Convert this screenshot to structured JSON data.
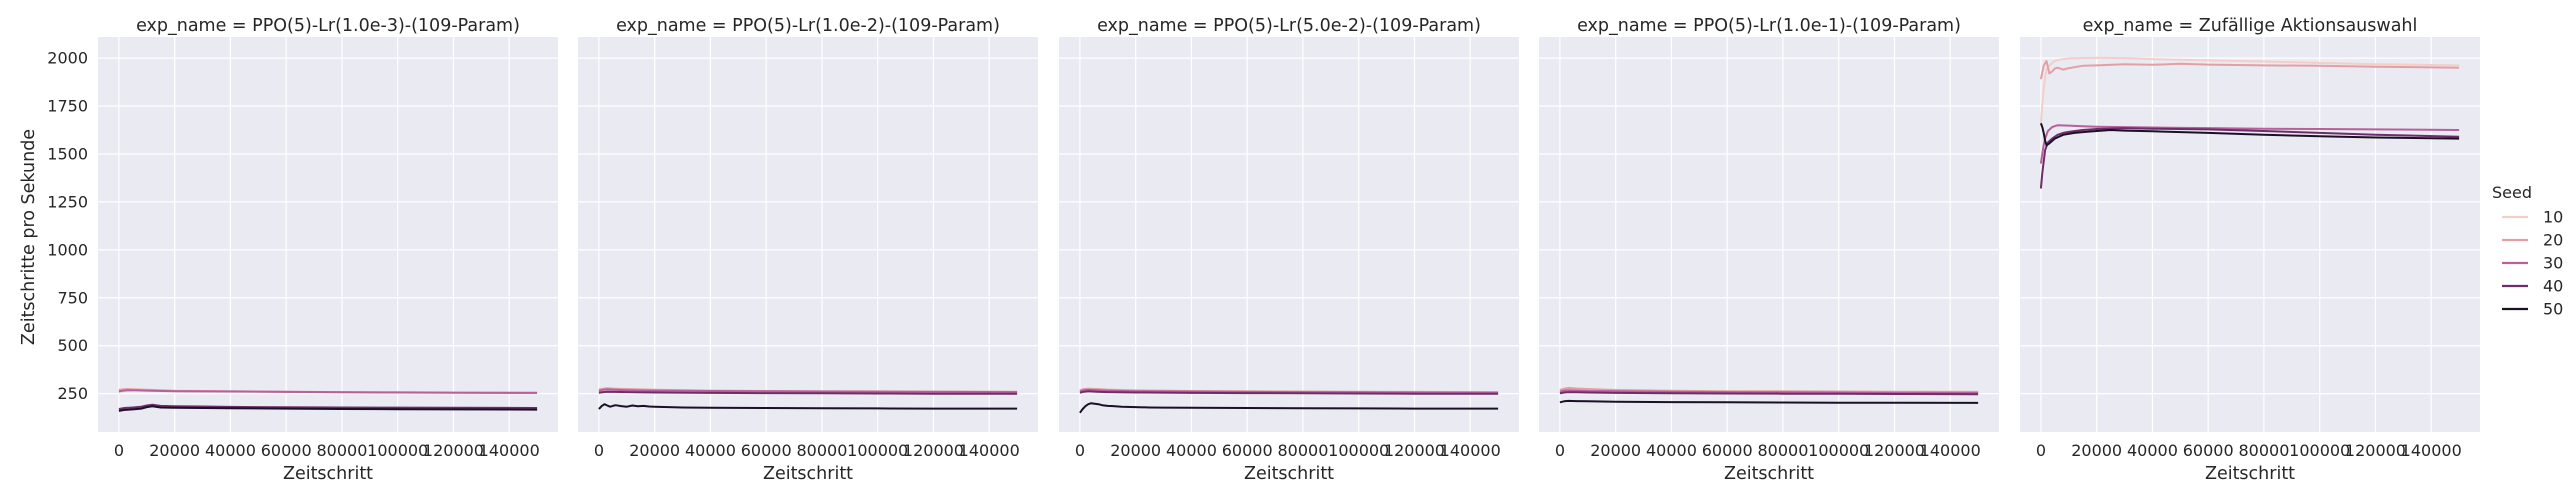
{
  "chart_data": {
    "type": "line",
    "ylabel": "Zeitschritte pro Sekunde",
    "xlabel": "Zeitschritt",
    "xlim": [
      -7500,
      157500
    ],
    "ylim": [
      50,
      2110
    ],
    "x_ticks": [
      0,
      20000,
      40000,
      60000,
      80000,
      100000,
      120000,
      140000
    ],
    "y_ticks": [
      250,
      500,
      750,
      1000,
      1250,
      1500,
      1750,
      2000
    ],
    "grid": true,
    "legend": {
      "title": "Seed",
      "placement": "right",
      "entries": [
        {
          "label": "10",
          "color": "#f2cfc8"
        },
        {
          "label": "20",
          "color": "#e3a0a4"
        },
        {
          "label": "30",
          "color": "#b7609a"
        },
        {
          "label": "40",
          "color": "#6e2d6a"
        },
        {
          "label": "50",
          "color": "#1b1026"
        }
      ]
    },
    "panels": [
      {
        "title": "exp_name = PPO(5)-Lr(1.0e-3)-(109-Param)",
        "series": [
          {
            "name": "10",
            "color": "#f2cfc8",
            "x": [
              0,
              1500,
              3000,
              6000,
              10000,
              20000,
              40000,
              60000,
              80000,
              100000,
              120000,
              150000
            ],
            "y": [
              255,
              262,
              265,
              266,
              266,
              264,
              262,
              260,
              258,
              257,
              256,
              254
            ]
          },
          {
            "name": "20",
            "color": "#e3a0a4",
            "x": [
              0,
              1500,
              3000,
              6000,
              10000,
              20000,
              40000,
              60000,
              80000,
              100000,
              120000,
              150000
            ],
            "y": [
              270,
              272,
              274,
              272,
              270,
              265,
              262,
              260,
              258,
              257,
              256,
              255
            ]
          },
          {
            "name": "30",
            "color": "#b7609a",
            "x": [
              0,
              1500,
              3000,
              6000,
              10000,
              20000,
              40000,
              60000,
              80000,
              100000,
              120000,
              150000
            ],
            "y": [
              262,
              266,
              268,
              268,
              266,
              263,
              261,
              259,
              257,
              256,
              255,
              254
            ]
          },
          {
            "name": "40",
            "color": "#6e2d6a",
            "x": [
              0,
              2000,
              5000,
              8000,
              10000,
              12000,
              15000,
              20000,
              30000,
              40000,
              60000,
              80000,
              100000,
              120000,
              150000
            ],
            "y": [
              170,
              175,
              178,
              182,
              188,
              192,
              186,
              184,
              183,
              181,
              179,
              178,
              177,
              176,
              175
            ]
          },
          {
            "name": "50",
            "color": "#1b1026",
            "x": [
              0,
              2000,
              5000,
              8000,
              10000,
              12000,
              15000,
              20000,
              30000,
              40000,
              60000,
              80000,
              100000,
              120000,
              150000
            ],
            "y": [
              160,
              165,
              168,
              172,
              180,
              184,
              178,
              176,
              175,
              174,
              172,
              170,
              169,
              168,
              167
            ]
          }
        ]
      },
      {
        "title": "exp_name = PPO(5)-Lr(1.0e-2)-(109-Param)",
        "series": [
          {
            "name": "10",
            "color": "#f2cfc8",
            "x": [
              0,
              1500,
              3000,
              6000,
              10000,
              20000,
              40000,
              60000,
              80000,
              100000,
              120000,
              150000
            ],
            "y": [
              260,
              268,
              272,
              270,
              268,
              265,
              263,
              261,
              260,
              259,
              258,
              257
            ]
          },
          {
            "name": "20",
            "color": "#e3a0a4",
            "x": [
              0,
              1500,
              3000,
              6000,
              10000,
              20000,
              40000,
              60000,
              80000,
              100000,
              120000,
              150000
            ],
            "y": [
              272,
              276,
              278,
              276,
              274,
              270,
              266,
              264,
              263,
              262,
              261,
              260
            ]
          },
          {
            "name": "30",
            "color": "#b7609a",
            "x": [
              0,
              1500,
              3000,
              6000,
              10000,
              20000,
              40000,
              60000,
              80000,
              100000,
              120000,
              150000
            ],
            "y": [
              265,
              270,
              272,
              270,
              268,
              266,
              264,
              262,
              261,
              260,
              259,
              258
            ]
          },
          {
            "name": "40",
            "color": "#6e2d6a",
            "x": [
              0,
              1500,
              3000,
              6000,
              10000,
              20000,
              40000,
              60000,
              80000,
              100000,
              120000,
              150000
            ],
            "y": [
              255,
              258,
              260,
              259,
              258,
              256,
              254,
              253,
              252,
              251,
              250,
              249
            ]
          },
          {
            "name": "50",
            "color": "#1b1026",
            "x": [
              0,
              1000,
              2000,
              3000,
              4000,
              5000,
              6000,
              8000,
              10000,
              12000,
              14000,
              16000,
              18000,
              20000,
              25000,
              30000,
              40000,
              60000,
              80000,
              100000,
              120000,
              150000
            ],
            "y": [
              170,
              185,
              195,
              188,
              182,
              186,
              190,
              185,
              182,
              188,
              184,
              186,
              183,
              182,
              180,
              178,
              176,
              175,
              174,
              173,
              172,
              172
            ]
          }
        ]
      },
      {
        "title": "exp_name = PPO(5)-Lr(5.0e-2)-(109-Param)",
        "series": [
          {
            "name": "10",
            "color": "#f2cfc8",
            "x": [
              0,
              1500,
              3000,
              6000,
              10000,
              20000,
              40000,
              60000,
              80000,
              100000,
              120000,
              150000
            ],
            "y": [
              258,
              266,
              270,
              268,
              266,
              263,
              261,
              259,
              258,
              257,
              256,
              255
            ]
          },
          {
            "name": "20",
            "color": "#e3a0a4",
            "x": [
              0,
              1500,
              3000,
              6000,
              10000,
              20000,
              40000,
              60000,
              80000,
              100000,
              120000,
              150000
            ],
            "y": [
              268,
              274,
              276,
              274,
              271,
              267,
              264,
              262,
              261,
              260,
              259,
              258
            ]
          },
          {
            "name": "30",
            "color": "#b7609a",
            "x": [
              0,
              1500,
              3000,
              6000,
              10000,
              20000,
              40000,
              60000,
              80000,
              100000,
              120000,
              150000
            ],
            "y": [
              262,
              268,
              270,
              268,
              266,
              263,
              261,
              259,
              258,
              257,
              256,
              255
            ]
          },
          {
            "name": "40",
            "color": "#6e2d6a",
            "x": [
              0,
              1500,
              3000,
              6000,
              10000,
              20000,
              40000,
              60000,
              80000,
              100000,
              120000,
              150000
            ],
            "y": [
              255,
              260,
              262,
              260,
              258,
              256,
              254,
              253,
              252,
              251,
              250,
              249
            ]
          },
          {
            "name": "50",
            "color": "#1b1026",
            "x": [
              0,
              1000,
              2000,
              3000,
              4000,
              5000,
              6000,
              7000,
              8000,
              10000,
              12000,
              15000,
              20000,
              25000,
              30000,
              40000,
              60000,
              80000,
              100000,
              120000,
              150000
            ],
            "y": [
              150,
              170,
              185,
              195,
              200,
              198,
              196,
              194,
              190,
              186,
              185,
              182,
              180,
              178,
              177,
              176,
              175,
              174,
              173,
              172,
              172
            ]
          }
        ]
      },
      {
        "title": "exp_name = PPO(5)-Lr(1.0e-1)-(109-Param)",
        "series": [
          {
            "name": "10",
            "color": "#f2cfc8",
            "x": [
              0,
              1500,
              3000,
              6000,
              10000,
              20000,
              40000,
              60000,
              80000,
              100000,
              120000,
              150000
            ],
            "y": [
              262,
              270,
              274,
              272,
              270,
              266,
              263,
              261,
              260,
              259,
              258,
              257
            ]
          },
          {
            "name": "20",
            "color": "#e3a0a4",
            "x": [
              0,
              1500,
              3000,
              6000,
              10000,
              20000,
              40000,
              60000,
              80000,
              100000,
              120000,
              150000
            ],
            "y": [
              270,
              276,
              280,
              277,
              274,
              269,
              265,
              263,
              262,
              261,
              260,
              259
            ]
          },
          {
            "name": "30",
            "color": "#b7609a",
            "x": [
              0,
              1500,
              3000,
              6000,
              10000,
              20000,
              40000,
              60000,
              80000,
              100000,
              120000,
              150000
            ],
            "y": [
              260,
              266,
              268,
              266,
              264,
              262,
              260,
              258,
              257,
              256,
              255,
              254
            ]
          },
          {
            "name": "40",
            "color": "#6e2d6a",
            "x": [
              0,
              1500,
              3000,
              6000,
              10000,
              20000,
              40000,
              60000,
              80000,
              100000,
              120000,
              150000
            ],
            "y": [
              252,
              256,
              258,
              257,
              256,
              254,
              252,
              251,
              250,
              249,
              248,
              247
            ]
          },
          {
            "name": "50",
            "color": "#1b1026",
            "x": [
              0,
              1500,
              3000,
              6000,
              10000,
              20000,
              40000,
              60000,
              80000,
              100000,
              120000,
              150000
            ],
            "y": [
              205,
              210,
              212,
              211,
              210,
              208,
              206,
              205,
              204,
              203,
              203,
              202
            ]
          }
        ]
      },
      {
        "title": "exp_name = Zufällige Aktionsauswahl",
        "series": [
          {
            "name": "10",
            "color": "#f2cfc8",
            "x": [
              0,
              500,
              1000,
              1500,
              2000,
              3000,
              4000,
              5000,
              6000,
              8000,
              10000,
              14000,
              20000,
              30000,
              40000,
              60000,
              80000,
              100000,
              120000,
              150000
            ],
            "y": [
              1650,
              1760,
              1840,
              1900,
              1940,
              1960,
              1975,
              1985,
              1990,
              1995,
              1998,
              2000,
              2002,
              2000,
              1995,
              1988,
              1982,
              1975,
              1968,
              1962
            ]
          },
          {
            "name": "20",
            "color": "#e3a0a4",
            "x": [
              0,
              1000,
              2000,
              3000,
              4000,
              5000,
              6000,
              8000,
              10000,
              15000,
              20000,
              30000,
              40000,
              50000,
              60000,
              80000,
              100000,
              120000,
              150000
            ],
            "y": [
              1890,
              1960,
              1985,
              1920,
              1930,
              1945,
              1950,
              1940,
              1948,
              1960,
              1962,
              1968,
              1965,
              1970,
              1966,
              1962,
              1960,
              1955,
              1950
            ]
          },
          {
            "name": "30",
            "color": "#b7609a",
            "x": [
              0,
              800,
              1500,
              2500,
              4000,
              6000,
              10000,
              15000,
              20000,
              30000,
              40000,
              60000,
              80000,
              100000,
              120000,
              150000
            ],
            "y": [
              1450,
              1530,
              1580,
              1620,
              1640,
              1650,
              1648,
              1645,
              1642,
              1640,
              1638,
              1635,
              1632,
              1630,
              1628,
              1625
            ]
          },
          {
            "name": "40",
            "color": "#6e2d6a",
            "x": [
              0,
              500,
              1000,
              1500,
              2500,
              4000,
              6000,
              8000,
              10000,
              15000,
              20000,
              30000,
              40000,
              60000,
              80000,
              100000,
              120000,
              150000
            ],
            "y": [
              1320,
              1400,
              1460,
              1520,
              1560,
              1580,
              1600,
              1610,
              1615,
              1625,
              1630,
              1635,
              1632,
              1628,
              1620,
              1610,
              1600,
              1590
            ]
          },
          {
            "name": "50",
            "color": "#1b1026",
            "x": [
              0,
              500,
              1000,
              1500,
              2000,
              3000,
              5000,
              8000,
              12000,
              16000,
              20000,
              25000,
              30000,
              40000,
              60000,
              80000,
              100000,
              120000,
              150000
            ],
            "y": [
              1660,
              1640,
              1610,
              1570,
              1545,
              1555,
              1580,
              1600,
              1610,
              1615,
              1620,
              1625,
              1622,
              1618,
              1610,
              1600,
              1592,
              1586,
              1580
            ]
          }
        ]
      }
    ]
  }
}
